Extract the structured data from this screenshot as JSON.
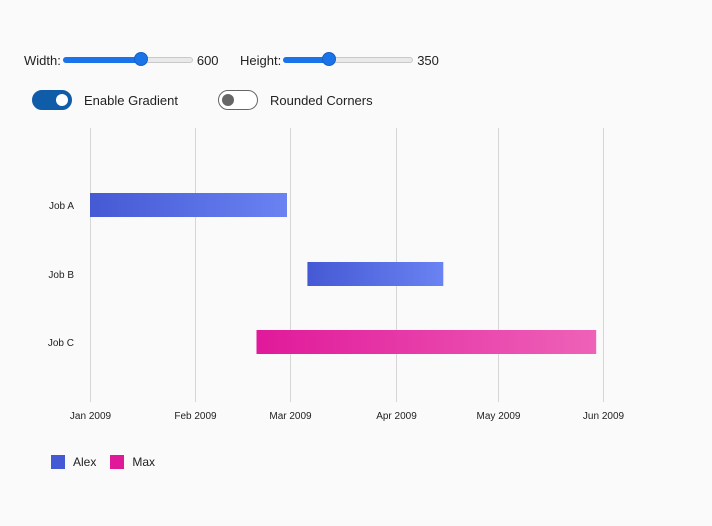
{
  "controls": {
    "width_label": "Width:",
    "width_value": "600",
    "width_fraction": 0.6,
    "height_label": "Height:",
    "height_value": "350",
    "height_fraction": 0.35,
    "enable_gradient_label": "Enable Gradient",
    "enable_gradient_on": true,
    "rounded_corners_label": "Rounded Corners",
    "rounded_corners_on": false
  },
  "colors": {
    "alex_start": "#4559d4",
    "alex_end": "#6a82f2",
    "max_start": "#e0199a",
    "max_end": "#ee62b8",
    "grid": "#d6d6d6",
    "slider_accent": "#1a73e8",
    "toggle_on": "#0f5ca8"
  },
  "chart_data": {
    "type": "gantt",
    "x_ticks": [
      "Jan 2009",
      "Feb 2009",
      "Mar 2009",
      "Apr 2009",
      "May 2009",
      "Jun 2009"
    ],
    "x_tick_dates": [
      "2009-01-01",
      "2009-02-01",
      "2009-03-01",
      "2009-04-01",
      "2009-05-01",
      "2009-06-01"
    ],
    "xlim": [
      "2009-01-01",
      "2009-06-01"
    ],
    "categories": [
      "Job A",
      "Job B",
      "Job C"
    ],
    "tasks": [
      {
        "category": "Job A",
        "series": "Alex",
        "start": "2009-01-01",
        "end": "2009-02-28"
      },
      {
        "category": "Job B",
        "series": "Alex",
        "start": "2009-03-06",
        "end": "2009-04-15"
      },
      {
        "category": "Job C",
        "series": "Max",
        "start": "2009-02-19",
        "end": "2009-05-30"
      }
    ],
    "series": [
      {
        "name": "Alex",
        "color": "#4559d4"
      },
      {
        "name": "Max",
        "color": "#e0199a"
      }
    ],
    "grid": true,
    "legend_position": "bottom-left"
  }
}
